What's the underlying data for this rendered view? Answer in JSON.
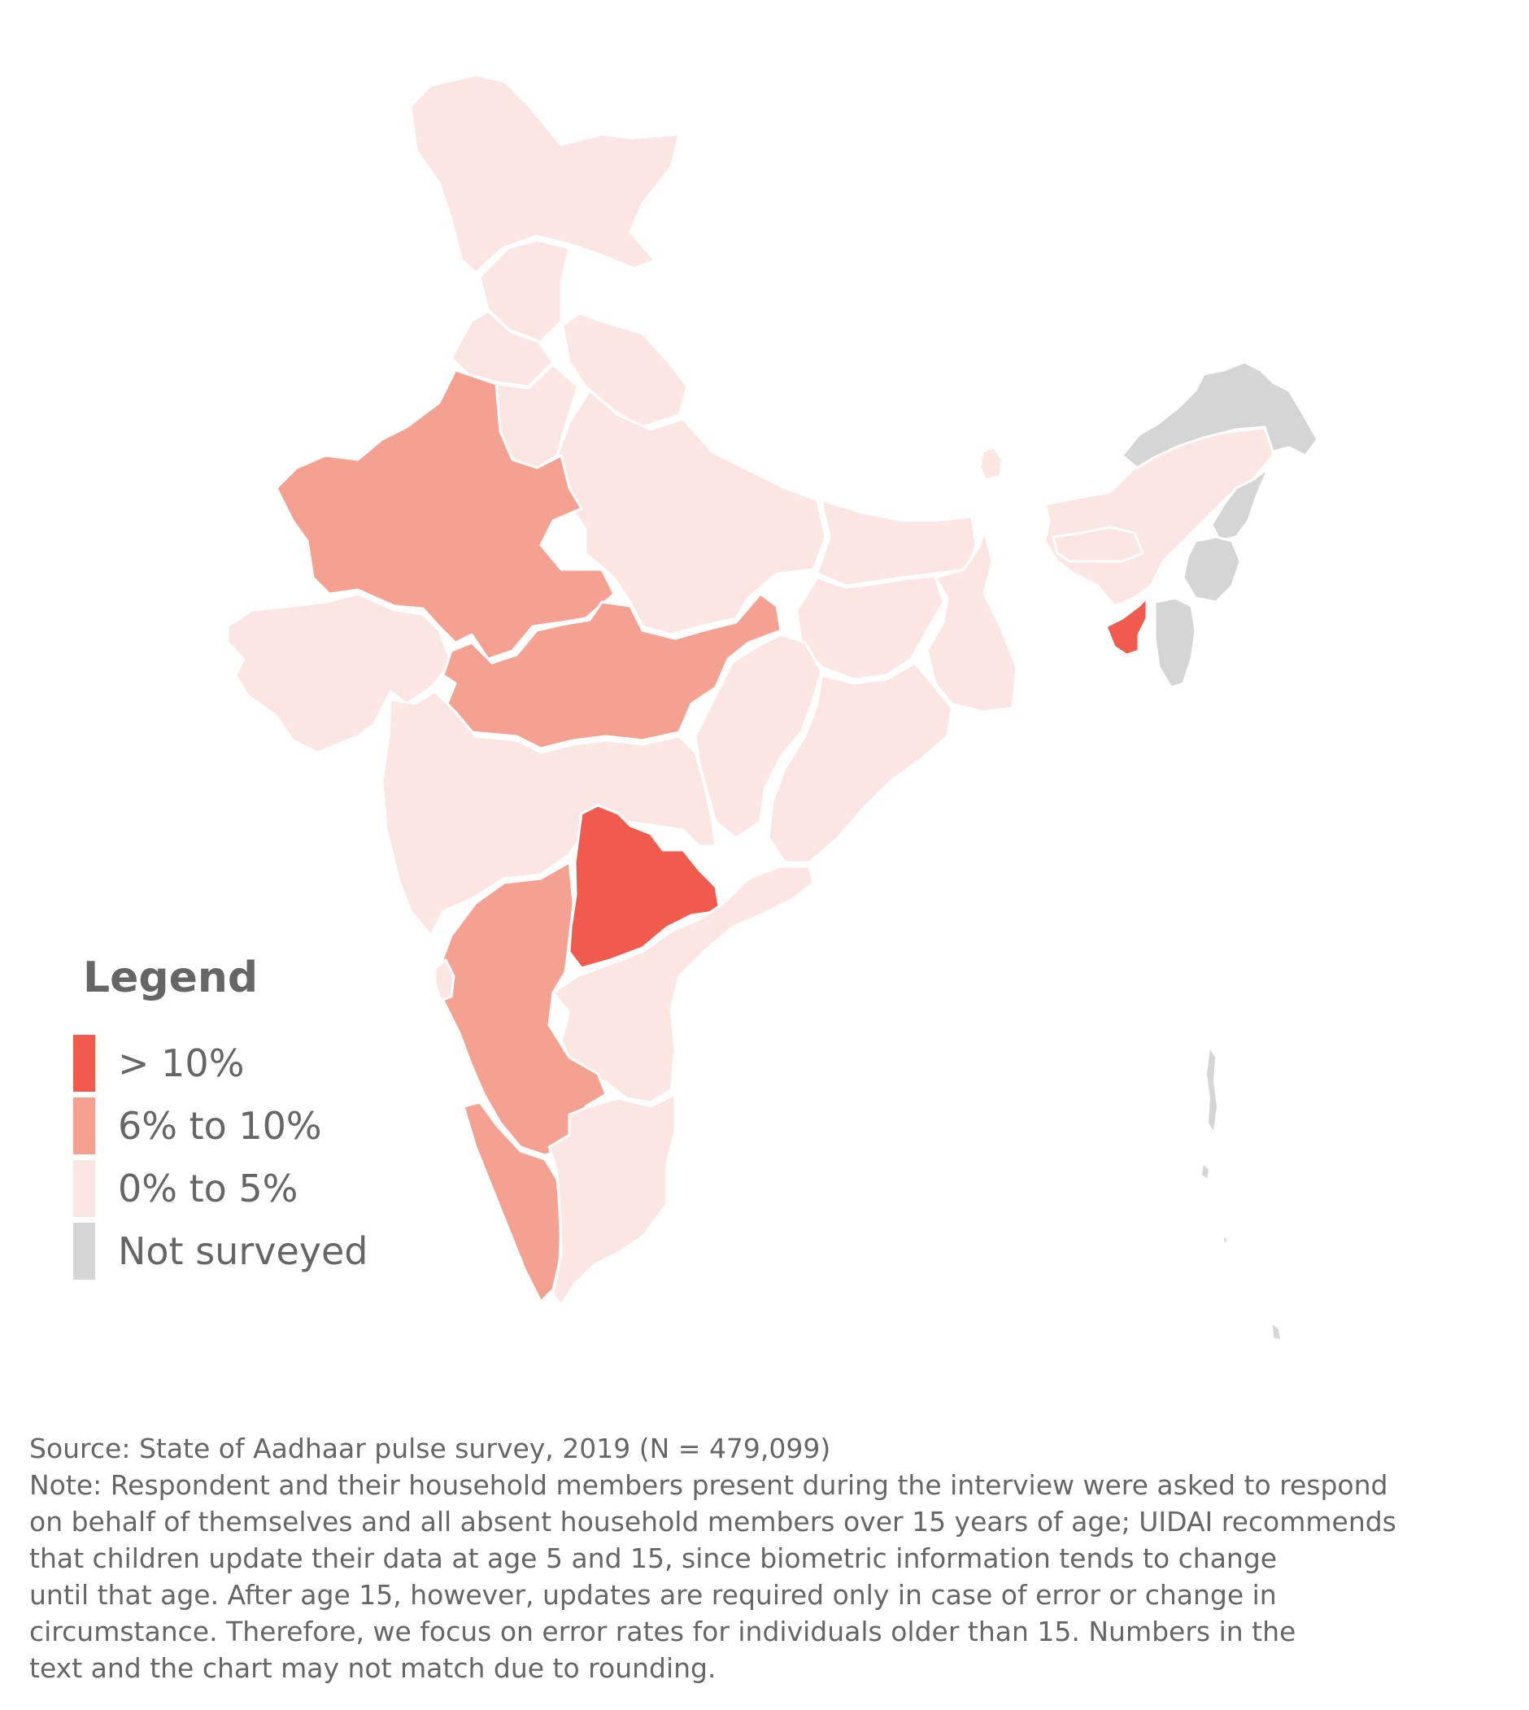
{
  "legend": {
    "title": "Legend",
    "items": [
      {
        "label": "> 10%",
        "color": "#F15B4E"
      },
      {
        "label": "6% to 10%",
        "color": "#F4A192"
      },
      {
        "label": "0% to 5%",
        "color": "#FCE6E4"
      },
      {
        "label": "Not surveyed",
        "color": "#D5D5D5"
      }
    ]
  },
  "map": {
    "regions": [
      {
        "name": "Jammu and Kashmir",
        "category": "0% to 5%"
      },
      {
        "name": "Himachal Pradesh",
        "category": "0% to 5%"
      },
      {
        "name": "Punjab",
        "category": "0% to 5%"
      },
      {
        "name": "Uttarakhand",
        "category": "0% to 5%"
      },
      {
        "name": "Haryana",
        "category": "0% to 5%"
      },
      {
        "name": "Uttar Pradesh",
        "category": "0% to 5%"
      },
      {
        "name": "Rajasthan",
        "category": "6% to 10%"
      },
      {
        "name": "Gujarat",
        "category": "0% to 5%"
      },
      {
        "name": "Madhya Pradesh",
        "category": "6% to 10%"
      },
      {
        "name": "Bihar",
        "category": "0% to 5%"
      },
      {
        "name": "Jharkhand",
        "category": "0% to 5%"
      },
      {
        "name": "West Bengal",
        "category": "0% to 5%"
      },
      {
        "name": "Chhattisgarh",
        "category": "0% to 5%"
      },
      {
        "name": "Odisha",
        "category": "0% to 5%"
      },
      {
        "name": "Maharashtra",
        "category": "0% to 5%"
      },
      {
        "name": "Telangana",
        "category": "> 10%"
      },
      {
        "name": "Andhra Pradesh",
        "category": "0% to 5%"
      },
      {
        "name": "Karnataka",
        "category": "6% to 10%"
      },
      {
        "name": "Goa",
        "category": "0% to 5%"
      },
      {
        "name": "Kerala",
        "category": "6% to 10%"
      },
      {
        "name": "Tamil Nadu",
        "category": "0% to 5%"
      },
      {
        "name": "Sikkim",
        "category": "0% to 5%"
      },
      {
        "name": "Assam",
        "category": "0% to 5%"
      },
      {
        "name": "Meghalaya",
        "category": "0% to 5%"
      },
      {
        "name": "Arunachal Pradesh",
        "category": "Not surveyed"
      },
      {
        "name": "Nagaland",
        "category": "Not surveyed"
      },
      {
        "name": "Manipur",
        "category": "Not surveyed"
      },
      {
        "name": "Mizoram",
        "category": "Not surveyed"
      },
      {
        "name": "Tripura",
        "category": "> 10%"
      },
      {
        "name": "Andaman and Nicobar Islands",
        "category": "Not surveyed"
      }
    ]
  },
  "footer": {
    "source": "Source: State of Aadhaar pulse survey, 2019 (N = 479,099)",
    "note_lines": [
      "Note: Respondent and their household members present during the interview were asked to respond",
      "on behalf of themselves and all absent household members over 15 years of age; UIDAI recommends",
      "that children update their data at age 5 and 15, since biometric information tends to change",
      "until that age. After age 15, however, updates are required only in case of error or change in",
      "circumstance. Therefore, we focus on error rates for individuals older than 15. Numbers in the",
      "text and the chart may not match due to rounding."
    ]
  }
}
